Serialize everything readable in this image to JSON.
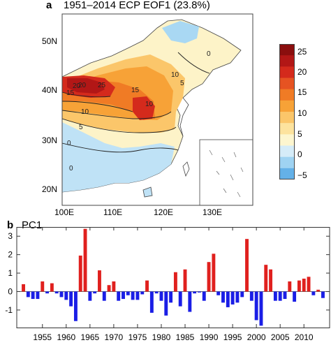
{
  "panel_a": {
    "letter": "a",
    "title": "1951–2014 ECP EOF1 (23.8%)",
    "lat_ticks": [
      "50N",
      "40N",
      "30N",
      "20N"
    ],
    "lon_ticks": [
      "100E",
      "110E",
      "120E",
      "130E"
    ],
    "colorbar": {
      "ticks": [
        "25",
        "20",
        "15",
        "10",
        "5",
        "0",
        "−5"
      ],
      "colors": [
        "#8a0e0e",
        "#b21716",
        "#d42a1c",
        "#e65322",
        "#f07b25",
        "#f7a237",
        "#fbc66a",
        "#fde39e",
        "#fdf6cf",
        "#d5ecf8",
        "#9fd3f2",
        "#64b1e8"
      ]
    },
    "contour_labels": [
      "0",
      "10",
      "5",
      "10",
      "15",
      "20",
      "25",
      "15",
      "20",
      "10",
      "5",
      "0",
      "0"
    ]
  },
  "chart_data": {
    "type": "bar",
    "panel": "b",
    "title": "PC1",
    "x": [
      1951,
      1952,
      1953,
      1954,
      1955,
      1956,
      1957,
      1958,
      1959,
      1960,
      1961,
      1962,
      1963,
      1964,
      1965,
      1966,
      1967,
      1968,
      1969,
      1970,
      1971,
      1972,
      1973,
      1974,
      1975,
      1976,
      1977,
      1978,
      1979,
      1980,
      1981,
      1982,
      1983,
      1984,
      1985,
      1986,
      1987,
      1988,
      1989,
      1990,
      1991,
      1992,
      1993,
      1994,
      1995,
      1996,
      1997,
      1998,
      1999,
      2000,
      2001,
      2002,
      2003,
      2004,
      2005,
      2006,
      2007,
      2008,
      2009,
      2010,
      2011,
      2012,
      2013,
      2014
    ],
    "values": [
      0.4,
      -0.3,
      -0.4,
      -0.4,
      0.55,
      -0.1,
      0.45,
      -0.1,
      -0.3,
      -0.45,
      -0.8,
      -1.6,
      1.95,
      3.4,
      -0.5,
      -0.1,
      1.15,
      -0.5,
      0.35,
      0.55,
      -0.5,
      -0.4,
      -0.2,
      -0.45,
      -0.45,
      -0.15,
      0.6,
      -1.15,
      -0.1,
      -0.5,
      -1.3,
      -0.6,
      1.05,
      -0.8,
      1.2,
      -1.1,
      -0.1,
      -0.05,
      -0.5,
      1.6,
      2.05,
      -0.2,
      -0.6,
      -0.85,
      -0.7,
      -0.6,
      -0.3,
      2.85,
      -0.5,
      -1.55,
      -1.85,
      1.45,
      1.2,
      -0.5,
      -0.5,
      -0.4,
      0.55,
      -0.55,
      0.6,
      0.7,
      0.8,
      -0.2,
      0.1,
      -0.35
    ],
    "xticks": [
      1955,
      1960,
      1965,
      1970,
      1975,
      1980,
      1985,
      1990,
      1995,
      2000,
      2005,
      2010
    ],
    "yticks": [
      -1,
      0,
      1,
      2,
      3
    ],
    "ylim": [
      -1.95,
      3.5
    ],
    "xlim": [
      1949.6,
      2015.4
    ],
    "positive_color": "#e0201e",
    "negative_color": "#1a1ee6"
  }
}
